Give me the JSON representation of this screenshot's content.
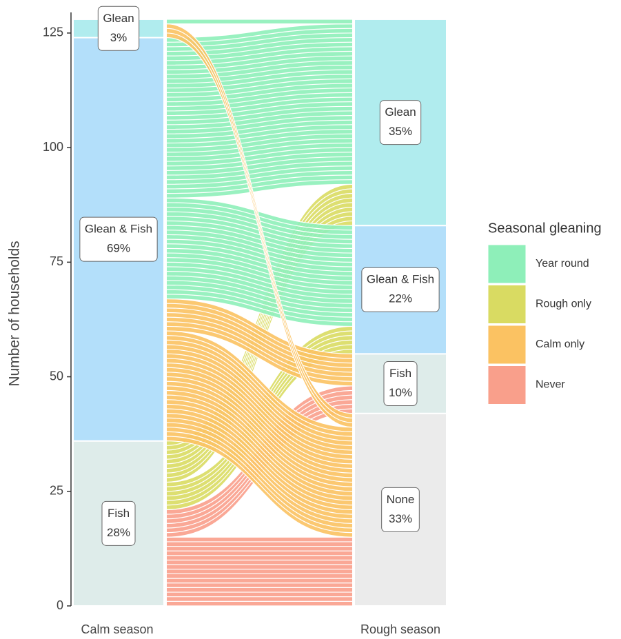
{
  "chart_data": {
    "type": "alluvial",
    "y_label": "Number of households",
    "axes": [
      "Calm season",
      "Rough season"
    ],
    "ylim": [
      0,
      129.5
    ],
    "yticks": [
      0,
      25,
      50,
      75,
      100,
      125
    ],
    "strata": [
      [
        {
          "name": "Fish",
          "value": 36,
          "percent": 28,
          "percent_label": "28%",
          "color": "#deecea"
        },
        {
          "name": "Glean & Fish",
          "value": 88,
          "percent": 69,
          "percent_label": "69%",
          "color": "#b3dffa"
        },
        {
          "name": "Glean",
          "value": 4,
          "percent": 3,
          "percent_label": "3%",
          "color": "#b0ecee"
        }
      ],
      [
        {
          "name": "None",
          "value": 42,
          "percent": 33,
          "percent_label": "33%",
          "color": "#ebebeb"
        },
        {
          "name": "Fish",
          "value": 13,
          "percent": 10,
          "percent_label": "10%",
          "color": "#deecea"
        },
        {
          "name": "Glean & Fish",
          "value": 28,
          "percent": 22,
          "percent_label": "22%",
          "color": "#b3dffa"
        },
        {
          "name": "Glean",
          "value": 45,
          "percent": 35,
          "percent_label": "35%",
          "color": "#b0ecee"
        }
      ]
    ],
    "legend_title": "Seasonal gleaning",
    "groups": [
      {
        "name": "Year round",
        "color": "#8eefb9"
      },
      {
        "name": "Rough only",
        "color": "#d9db62"
      },
      {
        "name": "Calm only",
        "color": "#fbc262"
      },
      {
        "name": "Never",
        "color": "#f99f8b"
      }
    ],
    "flows": [
      {
        "from": 0,
        "to": 0,
        "group": 3,
        "value": 15
      },
      {
        "from": 0,
        "to": 1,
        "group": 3,
        "value": 6
      },
      {
        "from": 0,
        "to": 2,
        "group": 1,
        "value": 6
      },
      {
        "from": 0,
        "to": 3,
        "group": 1,
        "value": 9
      },
      {
        "from": 1,
        "to": 0,
        "group": 2,
        "value": 24
      },
      {
        "from": 1,
        "to": 1,
        "group": 2,
        "value": 7
      },
      {
        "from": 1,
        "to": 2,
        "group": 0,
        "value": 22
      },
      {
        "from": 1,
        "to": 3,
        "group": 0,
        "value": 35
      },
      {
        "from": 2,
        "to": 0,
        "group": 2,
        "value": 3
      },
      {
        "from": 2,
        "to": 3,
        "group": 0,
        "value": 1
      }
    ]
  }
}
